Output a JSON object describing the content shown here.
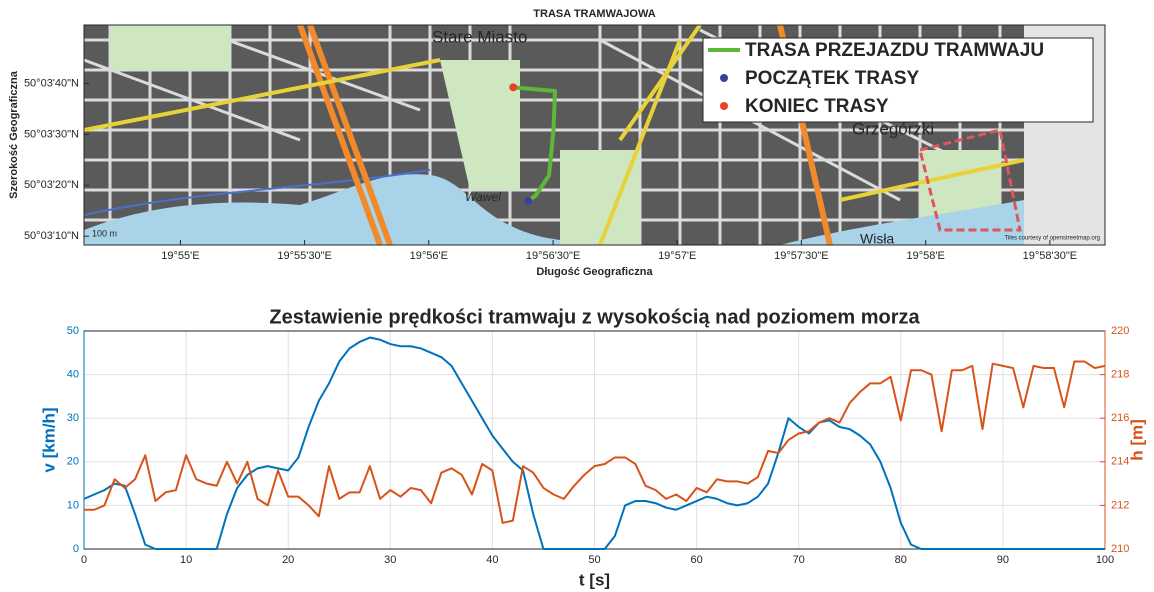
{
  "chart_data": [
    {
      "type": "map",
      "title": "TRASA TRAMWAJOWA",
      "xlabel": "Długość Geograficzna",
      "ylabel": "Szerokość Geograficzna",
      "xlim": [
        19.9102,
        19.9787
      ],
      "ylim": [
        50.0523,
        50.0643
      ],
      "xticks": [
        {
          "value": 19.91667,
          "label": "19°55'E"
        },
        {
          "value": 19.925,
          "label": "19°55'30\"E"
        },
        {
          "value": 19.93333,
          "label": "19°56'E"
        },
        {
          "value": 19.94167,
          "label": "19°56'30\"E"
        },
        {
          "value": 19.95,
          "label": "19°57'E"
        },
        {
          "value": 19.95833,
          "label": "19°57'30\"E"
        },
        {
          "value": 19.96667,
          "label": "19°58'E"
        },
        {
          "value": 19.975,
          "label": "19°58'30\"E"
        }
      ],
      "yticks": [
        {
          "value": 50.05278,
          "label": "50°03'10\"N"
        },
        {
          "value": 50.05556,
          "label": "50°03'20\"N"
        },
        {
          "value": 50.05833,
          "label": "50°03'30\"N"
        },
        {
          "value": 50.06111,
          "label": "50°03'40\"N"
        }
      ],
      "legend": "upper right",
      "map_labels": [
        "Stare Miasto",
        "Grzegórzki",
        "Wawel",
        "Wisła",
        "100 m",
        "Tiles courtesy of openstreetmap.org"
      ],
      "series": [
        {
          "name": "TRASA PRZEJAZDU TRAMWAJU",
          "style": "line",
          "color": "#5cb83a",
          "x": [
            19.94,
            19.9405,
            19.9414,
            19.9417,
            19.9418,
            19.939
          ],
          "y": [
            50.0547,
            50.055,
            50.0561,
            50.0586,
            50.0607,
            50.0609
          ]
        },
        {
          "name": "POCZĄTEK TRASY",
          "style": "point",
          "color": "#3b3f99",
          "x": [
            19.94
          ],
          "y": [
            50.0547
          ]
        },
        {
          "name": "KONIEC TRASY",
          "style": "point",
          "color": "#e8402a",
          "x": [
            19.939
          ],
          "y": [
            50.0609
          ]
        }
      ]
    },
    {
      "type": "line",
      "title": "Zestawienie prędkości tramwaju z wysokością nad poziomem morza",
      "xlabel": "t [s]",
      "ylabel": "v [km/h]",
      "y2label": "h [m]",
      "xlim": [
        0,
        100
      ],
      "xticks": [
        0,
        10,
        20,
        30,
        40,
        50,
        60,
        70,
        80,
        90,
        100
      ],
      "ylim": [
        0,
        50
      ],
      "yticks": [
        0,
        10,
        20,
        30,
        40,
        50
      ],
      "y2lim": [
        210,
        220
      ],
      "y2ticks": [
        210,
        212,
        214,
        216,
        218,
        220
      ],
      "grid": true,
      "x": [
        0,
        1,
        2,
        3,
        4,
        5,
        6,
        7,
        8,
        9,
        10,
        11,
        12,
        13,
        14,
        15,
        16,
        17,
        18,
        19,
        20,
        21,
        22,
        23,
        24,
        25,
        26,
        27,
        28,
        29,
        30,
        31,
        32,
        33,
        34,
        35,
        36,
        37,
        38,
        39,
        40,
        41,
        42,
        43,
        44,
        45,
        46,
        47,
        48,
        49,
        50,
        51,
        52,
        53,
        54,
        55,
        56,
        57,
        58,
        59,
        60,
        61,
        62,
        63,
        64,
        65,
        66,
        67,
        68,
        69,
        70,
        71,
        72,
        73,
        74,
        75,
        76,
        77,
        78,
        79,
        80,
        81,
        82,
        83,
        84,
        85,
        86,
        87,
        88,
        89,
        90,
        91,
        92,
        93,
        94,
        95,
        96,
        97,
        98,
        99,
        100
      ],
      "series": [
        {
          "color": "#0072bd",
          "axis": "y",
          "values": [
            11.5,
            12.5,
            13.5,
            15,
            14.5,
            8,
            1,
            0,
            0,
            0,
            0,
            0,
            0,
            0,
            8,
            14,
            17,
            18.5,
            19,
            18.5,
            18,
            21,
            28,
            34,
            38,
            43,
            46,
            47.5,
            48.5,
            48,
            47,
            46.5,
            46.5,
            46,
            45,
            44,
            42,
            38,
            34,
            30,
            26,
            23,
            20,
            18,
            8,
            0,
            0,
            0,
            0,
            0,
            0,
            0,
            3,
            10,
            11,
            11,
            10.5,
            9.5,
            9,
            10,
            11,
            12,
            11.5,
            10.5,
            10,
            10.5,
            12,
            15,
            22,
            30,
            28,
            26.5,
            29,
            29.5,
            28,
            27.5,
            26,
            24,
            20,
            14,
            6,
            1,
            0,
            0,
            0,
            0,
            0,
            0,
            0,
            0,
            0,
            0,
            0,
            0,
            0,
            0,
            0,
            0,
            0,
            0,
            0
          ]
        },
        {
          "color": "#d95319",
          "axis": "y2",
          "values": [
            211.8,
            211.8,
            212,
            213.2,
            212.8,
            213.2,
            214.3,
            212.2,
            212.6,
            212.7,
            214.3,
            213.2,
            213,
            212.9,
            214,
            213,
            214,
            212.3,
            212,
            213.6,
            212.4,
            212.4,
            212,
            211.5,
            213.8,
            212.3,
            212.6,
            212.6,
            213.8,
            212.3,
            212.7,
            212.4,
            212.8,
            212.7,
            212.1,
            213.5,
            213.7,
            213.4,
            212.5,
            213.9,
            213.6,
            211.2,
            211.3,
            213.8,
            213.5,
            212.8,
            212.5,
            212.3,
            212.9,
            213.4,
            213.8,
            213.9,
            214.2,
            214.2,
            213.9,
            212.9,
            212.7,
            212.3,
            212.5,
            212.2,
            212.8,
            212.6,
            213.2,
            213.1,
            213.1,
            213,
            213.3,
            214.5,
            214.4,
            215,
            215.3,
            215.4,
            215.8,
            216,
            215.8,
            216.7,
            217.2,
            217.6,
            217.6,
            217.9,
            215.9,
            218.2,
            218.2,
            218,
            215.4,
            218.2,
            218.2,
            218.4,
            215.5,
            218.5,
            218.4,
            218.3,
            216.5,
            218.4,
            218.3,
            218.3,
            216.5,
            218.6,
            218.6,
            218.3,
            218.4
          ]
        }
      ]
    }
  ]
}
